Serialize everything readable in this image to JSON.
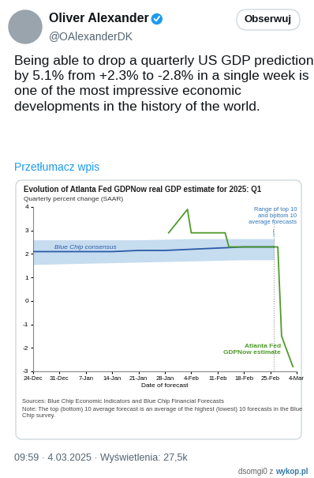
{
  "post": {
    "author": "Oliver Alexander",
    "handle": "@OAlexanderDK",
    "button": "Obserwuj",
    "text": "Being able to drop a quarterly US GDP prediction by 5.1% from +2.3% to -2.8% in a single week is one of the most impressive economic developments in the history of the world.",
    "translate": "Przetłumacz wpis",
    "footer": "09:59 · 4.03.2025 · Wyświetlenia: 27,5k",
    "watermark_user": "dsomgi0 z",
    "watermark_site": "wykop.pl"
  },
  "chart_data": {
    "type": "line",
    "title": "Evolution of Atlanta Fed GDPNow real GDP estimate for 2025: Q1",
    "subtitle": "Quarterly percent change (SAAR)",
    "x_label": "Date of forecast",
    "sources": "Sources: Blue Chip Economic Indicators and Blue Chip Financial Forecasts",
    "note": "Note: The top (bottom) 10 average forecast is an average of the highest (lowest) 10 forecasts in the Blue Chip survey.",
    "xlim": [
      0,
      70
    ],
    "xticks": [
      {
        "value": 0,
        "label": "24-Dec"
      },
      {
        "value": 7,
        "label": "31-Dec"
      },
      {
        "value": 14,
        "label": "7-Jan"
      },
      {
        "value": 21,
        "label": "14-Jan"
      },
      {
        "value": 28,
        "label": "21-Jan"
      },
      {
        "value": 35,
        "label": "28-Jan"
      },
      {
        "value": 42,
        "label": "4-Feb"
      },
      {
        "value": 49,
        "label": "11-Feb"
      },
      {
        "value": 56,
        "label": "18-Feb"
      },
      {
        "value": 63,
        "label": "25-Feb"
      },
      {
        "value": 70,
        "label": "4-Mar"
      }
    ],
    "ylim": [
      -3,
      4
    ],
    "yticks": [
      -3,
      -2,
      -1,
      0,
      1,
      2,
      3,
      4
    ],
    "grid": false,
    "series": [
      {
        "name": "Range of top 10\nand bottom 10\naverage forecasts",
        "type": "area",
        "color": "#c6dcef",
        "x": [
          0,
          14,
          28,
          42,
          56,
          64
        ],
        "low": [
          1.55,
          1.6,
          1.65,
          1.7,
          1.75,
          1.75
        ],
        "high": [
          2.6,
          2.6,
          2.6,
          2.65,
          2.65,
          2.65
        ]
      },
      {
        "name": "Blue Chip consensus",
        "type": "line",
        "color": "#2e5aa8",
        "x": [
          0,
          7,
          14,
          21,
          28,
          35,
          42,
          49,
          56,
          63,
          64
        ],
        "values": [
          2.1,
          2.1,
          2.1,
          2.1,
          2.15,
          2.15,
          2.2,
          2.25,
          2.3,
          2.3,
          2.3
        ]
      },
      {
        "name": "Atlanta Fed\nGDPNow estimate",
        "type": "line",
        "color": "#4e9a2a",
        "x": [
          36,
          41,
          42,
          51,
          52,
          64,
          65,
          66,
          69
        ],
        "values": [
          2.9,
          3.9,
          2.9,
          2.9,
          2.3,
          2.3,
          2.3,
          -1.5,
          -2.8
        ]
      }
    ]
  }
}
